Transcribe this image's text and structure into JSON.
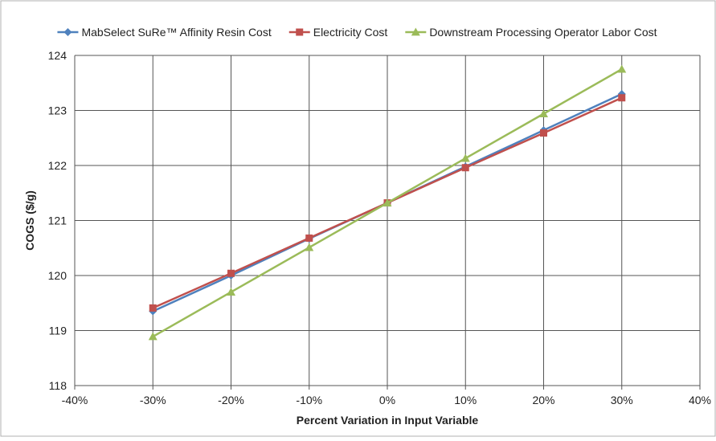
{
  "chart_data": {
    "type": "line",
    "title": "",
    "xlabel": "Percent Variation in Input Variable",
    "ylabel": "COGS ($/g)",
    "xlim": [
      -40,
      40
    ],
    "ylim": [
      118,
      124
    ],
    "x_ticks": [
      -40,
      -30,
      -20,
      -10,
      0,
      10,
      20,
      30,
      40
    ],
    "x_tick_labels": [
      "-40%",
      "-30%",
      "-20%",
      "-10%",
      "0%",
      "10%",
      "20%",
      "30%",
      "40%"
    ],
    "y_ticks": [
      118,
      119,
      120,
      121,
      122,
      123,
      124
    ],
    "y_tick_labels": [
      "118",
      "119",
      "120",
      "121",
      "122",
      "123",
      "124"
    ],
    "grid": true,
    "legend_position": "top",
    "x": [
      -30,
      -20,
      -10,
      0,
      10,
      20,
      30
    ],
    "series": [
      {
        "name": "MabSelect SuRe™ Affinity Resin Cost",
        "color": "#4f81bd",
        "marker": "diamond",
        "values": [
          119.35,
          120.0,
          120.67,
          121.32,
          121.98,
          122.64,
          123.3
        ]
      },
      {
        "name": "Electricity Cost",
        "color": "#c0504d",
        "marker": "square",
        "values": [
          119.41,
          120.04,
          120.68,
          121.32,
          121.96,
          122.59,
          123.23
        ]
      },
      {
        "name": "Downstream Processing Operator Labor Cost",
        "color": "#9bbb59",
        "marker": "triangle",
        "values": [
          118.89,
          119.7,
          120.51,
          121.32,
          122.13,
          122.94,
          123.75
        ]
      }
    ]
  }
}
